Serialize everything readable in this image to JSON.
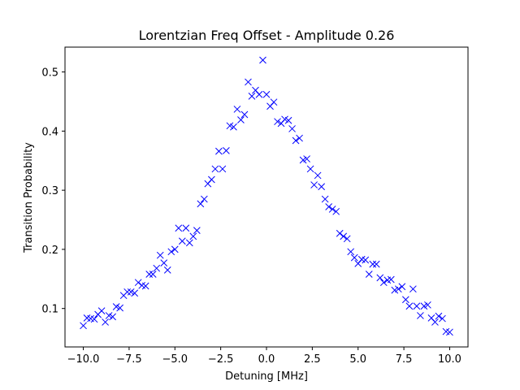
{
  "chart_data": {
    "type": "scatter",
    "title": "Lorentzian Freq Offset - Amplitude 0.26",
    "xlabel": "Detuning [MHz]",
    "ylabel": "Transition Probability",
    "xlim": [
      -11.0,
      11.0
    ],
    "ylim": [
      0.035,
      0.542
    ],
    "xticks": [
      -10.0,
      -7.5,
      -5.0,
      -2.5,
      0.0,
      2.5,
      5.0,
      7.5,
      10.0
    ],
    "xtick_labels": [
      "−10.0",
      "−7.5",
      "−5.0",
      "−2.5",
      "0.0",
      "2.5",
      "5.0",
      "7.5",
      "10.0"
    ],
    "yticks": [
      0.1,
      0.2,
      0.3,
      0.4,
      0.5
    ],
    "ytick_labels": [
      "0.1",
      "0.2",
      "0.3",
      "0.4",
      "0.5"
    ],
    "grid": false,
    "marker": "x",
    "series": [
      {
        "color": "#0000ff",
        "x": [
          -10.0,
          -9.8,
          -9.6,
          -9.4,
          -9.2,
          -9.0,
          -8.8,
          -8.6,
          -8.4,
          -8.2,
          -8.0,
          -7.8,
          -7.6,
          -7.4,
          -7.2,
          -7.0,
          -6.8,
          -6.6,
          -6.4,
          -6.2,
          -6.0,
          -5.8,
          -5.6,
          -5.4,
          -5.2,
          -5.0,
          -4.8,
          -4.6,
          -4.4,
          -4.2,
          -4.0,
          -3.8,
          -3.6,
          -3.4,
          -3.2,
          -3.0,
          -2.8,
          -2.6,
          -2.4,
          -2.2,
          -2.0,
          -1.8,
          -1.6,
          -1.4,
          -1.2,
          -1.0,
          -0.8,
          -0.6,
          -0.4,
          -0.2,
          0.0,
          0.2,
          0.4,
          0.6,
          0.8,
          1.0,
          1.2,
          1.4,
          1.6,
          1.8,
          2.0,
          2.2,
          2.4,
          2.6,
          2.8,
          3.0,
          3.2,
          3.4,
          3.6,
          3.8,
          4.0,
          4.2,
          4.4,
          4.6,
          4.8,
          5.0,
          5.2,
          5.4,
          5.6,
          5.8,
          6.0,
          6.2,
          6.4,
          6.6,
          6.8,
          7.0,
          7.2,
          7.4,
          7.6,
          7.8,
          8.0,
          8.2,
          8.4,
          8.6,
          8.8,
          9.0,
          9.2,
          9.4,
          9.6,
          9.8,
          10.0
        ],
        "y": [
          0.071,
          0.084,
          0.083,
          0.082,
          0.09,
          0.096,
          0.077,
          0.088,
          0.086,
          0.103,
          0.101,
          0.122,
          0.128,
          0.128,
          0.126,
          0.144,
          0.139,
          0.138,
          0.158,
          0.158,
          0.168,
          0.19,
          0.177,
          0.165,
          0.196,
          0.2,
          0.236,
          0.214,
          0.236,
          0.211,
          0.222,
          0.232,
          0.277,
          0.285,
          0.311,
          0.318,
          0.336,
          0.366,
          0.336,
          0.367,
          0.409,
          0.407,
          0.437,
          0.419,
          0.428,
          0.483,
          0.459,
          0.469,
          0.462,
          0.52,
          0.462,
          0.442,
          0.449,
          0.416,
          0.413,
          0.42,
          0.418,
          0.404,
          0.384,
          0.388,
          0.351,
          0.353,
          0.336,
          0.309,
          0.325,
          0.306,
          0.285,
          0.272,
          0.268,
          0.264,
          0.227,
          0.222,
          0.218,
          0.196,
          0.186,
          0.176,
          0.183,
          0.182,
          0.158,
          0.175,
          0.175,
          0.152,
          0.144,
          0.148,
          0.149,
          0.131,
          0.133,
          0.137,
          0.115,
          0.104,
          0.133,
          0.104,
          0.088,
          0.104,
          0.106,
          0.084,
          0.077,
          0.087,
          0.083,
          0.061,
          0.06
        ]
      }
    ]
  }
}
